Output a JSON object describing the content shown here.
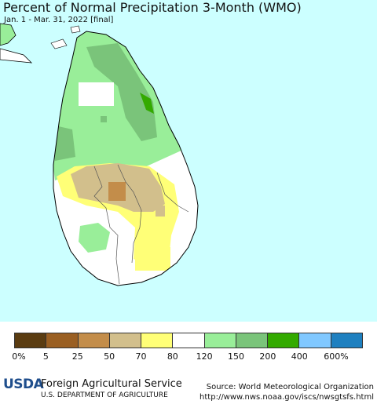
{
  "header": {
    "title": "Percent of Normal Precipitation 3-Month (WMO)",
    "subtitle": "Jan. 1 - Mar. 31, 2022 [final]"
  },
  "colors": {
    "sea": "#ccffff",
    "land_white": "#ffffff",
    "green_light": "#99ee99",
    "green_mid": "#7ac47a",
    "green_dark": "#33aa00",
    "tan": "#d2bf8c",
    "brown": "#c38d4a",
    "yellow": "#ffff77"
  },
  "legend": {
    "colors": [
      "#5a3c11",
      "#9a5f22",
      "#c38d4a",
      "#d2bf8c",
      "#ffff77",
      "#ffffff",
      "#99ee99",
      "#7ac47a",
      "#33aa00",
      "#80c8ff",
      "#1e80c0"
    ],
    "labels": [
      "0%",
      "5",
      "25",
      "50",
      "70",
      "80",
      "120",
      "150",
      "200",
      "400",
      "600%"
    ]
  },
  "footer": {
    "logo_text": "USDA",
    "agency": "Foreign Agricultural Service",
    "department": "U.S. DEPARTMENT OF AGRICULTURE",
    "source": "Source: World Meteorological Organization",
    "url": "http://www.nws.noaa.gov/iscs/nwsgtsfs.html"
  }
}
